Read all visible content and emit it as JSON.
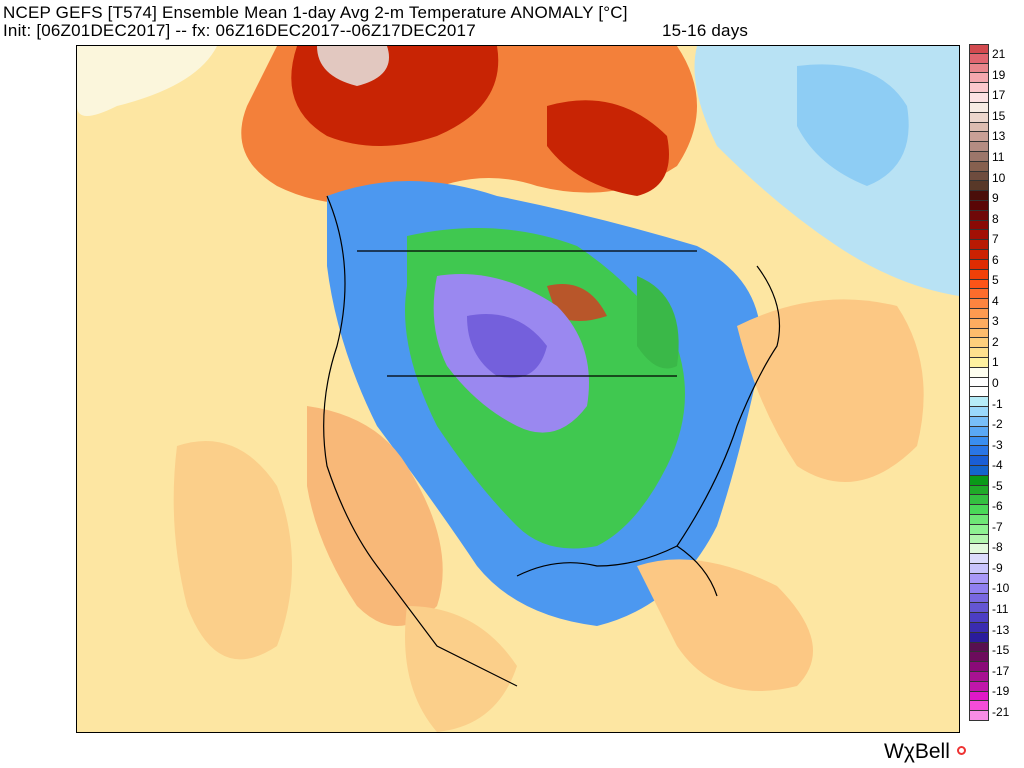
{
  "header": {
    "title_line1": "NCEP GEFS [T574] Ensemble Mean 1-day Avg 2-m Temperature ANOMALY [°C]",
    "title_line2": "Init: [06Z01DEC2017] -- fx: 06Z16DEC2017--06Z17DEC2017",
    "forecast_range": "15-16 days"
  },
  "colorbar": {
    "labels": [
      "21",
      "19",
      "17",
      "15",
      "13",
      "11",
      "10",
      "9",
      "8",
      "7",
      "6",
      "5",
      "4",
      "3",
      "2",
      "1",
      "0",
      "-1",
      "-2",
      "-3",
      "-4",
      "-5",
      "-6",
      "-7",
      "-8",
      "-9",
      "-10",
      "-11",
      "-13",
      "-15",
      "-17",
      "-19",
      "-21"
    ],
    "colors": [
      "#d24a4f",
      "#e06670",
      "#e8868c",
      "#f4a8ae",
      "#fcc8cc",
      "#fde2e3",
      "#f7ece4",
      "#ecd6cc",
      "#dcbcb0",
      "#c9a096",
      "#b48c82",
      "#9c766a",
      "#86604f",
      "#6e4c3e",
      "#583828",
      "#4a0e0a",
      "#5a0606",
      "#700808",
      "#8a0a05",
      "#a21005",
      "#b81a03",
      "#cc2202",
      "#e02c02",
      "#f04008",
      "#fc5418",
      "#fc6c2c",
      "#fc8440",
      "#fd9a50",
      "#fdac60",
      "#fdbc6c",
      "#fdcf7c",
      "#fde08e",
      "#fff2a0",
      "#fffff0",
      "#ffffff",
      "#ffffff",
      "#b6ecf8",
      "#9ad8fb",
      "#78bef8",
      "#5aa8f5",
      "#3a8ef0",
      "#2a76e6",
      "#1a5ed6",
      "#1464cc",
      "#0a9a18",
      "#20aa28",
      "#34c040",
      "#4ad858",
      "#6ee676",
      "#8ef292",
      "#b2f6ae",
      "#e2fadc",
      "#dcdcfc",
      "#c8c4fc",
      "#a898f8",
      "#9080f0",
      "#7868e0",
      "#6456d2",
      "#4c3ec4",
      "#3a2cb0",
      "#2a1c9c",
      "#581050",
      "#6c0c5c",
      "#8a0a78",
      "#a81292",
      "#c016aa",
      "#e018c8",
      "#f44cd8",
      "#f88ce4"
    ]
  },
  "logo": "WχBell"
}
